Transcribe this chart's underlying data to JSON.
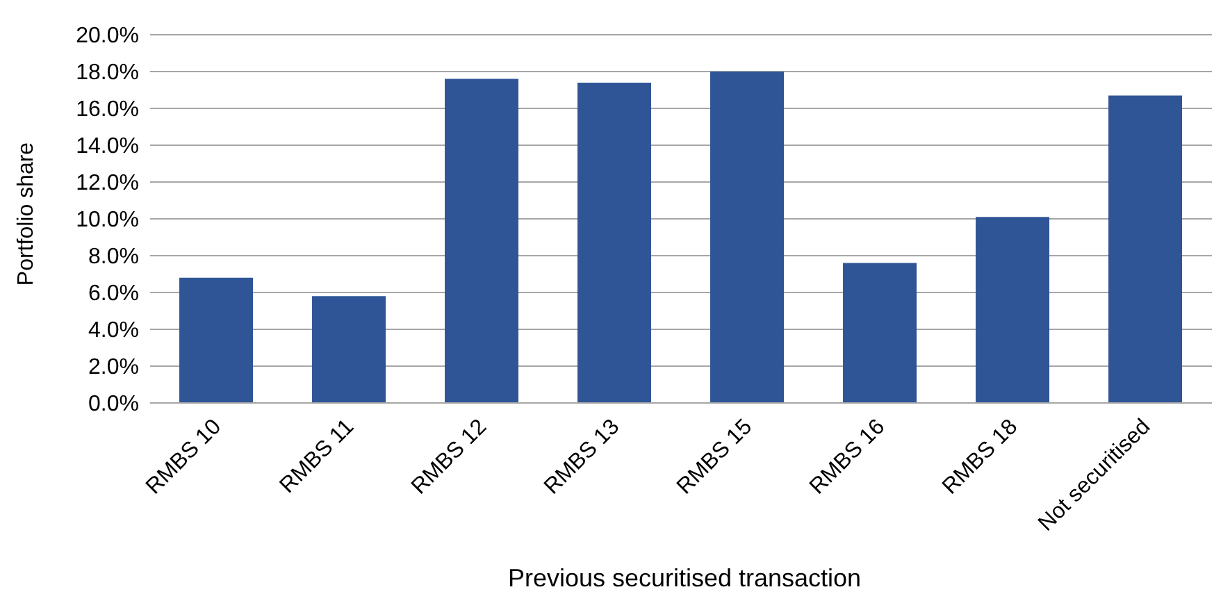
{
  "chart_data": {
    "type": "bar",
    "xlabel": "Previous securitised transaction",
    "ylabel": "Portfolio share",
    "categories": [
      "RMBS 10",
      "RMBS 11",
      "RMBS 12",
      "RMBS 13",
      "RMBS 15",
      "RMBS 16",
      "RMBS 18",
      "Not securitised"
    ],
    "values": [
      6.8,
      5.8,
      17.6,
      17.4,
      18.0,
      7.6,
      10.1,
      16.7
    ],
    "color": "#2f5597",
    "ylim": [
      0,
      20
    ],
    "yticks": [
      {
        "value": 0,
        "label": "0.0%"
      },
      {
        "value": 2,
        "label": "2.0%"
      },
      {
        "value": 4,
        "label": "4.0%"
      },
      {
        "value": 6,
        "label": "6.0%"
      },
      {
        "value": 8,
        "label": "8.0%"
      },
      {
        "value": 10,
        "label": "10.0%"
      },
      {
        "value": 12,
        "label": "12.0%"
      },
      {
        "value": 14,
        "label": "14.0%"
      },
      {
        "value": 16,
        "label": "16.0%"
      },
      {
        "value": 18,
        "label": "18.0%"
      },
      {
        "value": 20,
        "label": "20.0%"
      }
    ],
    "grid": "y"
  }
}
